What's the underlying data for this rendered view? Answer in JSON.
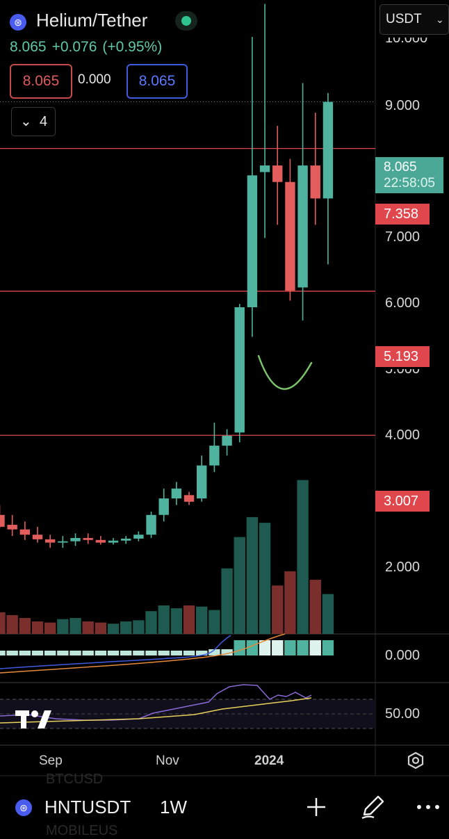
{
  "header": {
    "pair_title": "Helium/Tether",
    "last_price": "8.065",
    "change": "+0.076",
    "change_pct": "(+0.95%)",
    "bid": "8.065",
    "spread": "0.000",
    "ask": "8.065",
    "indicator_count": "4",
    "currency": "USDT"
  },
  "price_axis": {
    "ticks": [
      "10.000",
      "9.000",
      "7.000",
      "6.000",
      "5.000",
      "4.000",
      "2.000"
    ],
    "current_price_tag": "8.065",
    "countdown": "22:58:05",
    "level_tags": [
      "7.358",
      "5.193",
      "3.007"
    ],
    "macd_zero_label": "0.000",
    "rsi_mid_label": "50.00"
  },
  "time_axis": {
    "labels": [
      "Sep",
      "Nov",
      "2024"
    ]
  },
  "bottom": {
    "symbol": "HNTUSDT",
    "interval": "1W",
    "ghost_symbols": [
      "BTCUSD",
      "MOBILEUS"
    ]
  },
  "colors": {
    "up": "#4fb3a0",
    "down": "#e35d5d",
    "vol_up": "#1e5a4f",
    "vol_down": "#7a2f2c",
    "level_line": "#e0474c",
    "accent": "#4a5cf0",
    "annotation": "#7ac36a"
  },
  "icons": [
    "helium-coin-icon",
    "live-status-icon",
    "chevron-down-icon",
    "settings-icon",
    "plus-icon",
    "pen-icon",
    "more-icon",
    "tradingview-logo"
  ],
  "chart_data": {
    "type": "candlestick",
    "timeframe": "1W",
    "horizontal_levels": [
      7.358,
      5.193,
      3.007
    ],
    "last": 8.065,
    "candles": [
      {
        "o": 1.8,
        "h": 1.95,
        "l": 1.6,
        "c": 1.62,
        "v": 0.38
      },
      {
        "o": 1.65,
        "h": 1.8,
        "l": 1.48,
        "c": 1.58,
        "v": 0.33
      },
      {
        "o": 1.58,
        "h": 1.7,
        "l": 1.42,
        "c": 1.5,
        "v": 0.28
      },
      {
        "o": 1.5,
        "h": 1.62,
        "l": 1.38,
        "c": 1.43,
        "v": 0.22
      },
      {
        "o": 1.43,
        "h": 1.5,
        "l": 1.3,
        "c": 1.38,
        "v": 0.2
      },
      {
        "o": 1.38,
        "h": 1.48,
        "l": 1.3,
        "c": 1.4,
        "v": 0.26
      },
      {
        "o": 1.4,
        "h": 1.52,
        "l": 1.33,
        "c": 1.45,
        "v": 0.28
      },
      {
        "o": 1.45,
        "h": 1.52,
        "l": 1.36,
        "c": 1.42,
        "v": 0.22
      },
      {
        "o": 1.42,
        "h": 1.48,
        "l": 1.35,
        "c": 1.38,
        "v": 0.2
      },
      {
        "o": 1.38,
        "h": 1.45,
        "l": 1.35,
        "c": 1.41,
        "v": 0.18
      },
      {
        "o": 1.41,
        "h": 1.48,
        "l": 1.36,
        "c": 1.44,
        "v": 0.22
      },
      {
        "o": 1.44,
        "h": 1.55,
        "l": 1.4,
        "c": 1.5,
        "v": 0.24
      },
      {
        "o": 1.5,
        "h": 1.85,
        "l": 1.45,
        "c": 1.8,
        "v": 0.4
      },
      {
        "o": 1.8,
        "h": 2.2,
        "l": 1.7,
        "c": 2.05,
        "v": 0.5
      },
      {
        "o": 2.05,
        "h": 2.3,
        "l": 1.95,
        "c": 2.2,
        "v": 0.45
      },
      {
        "o": 2.1,
        "h": 2.15,
        "l": 1.95,
        "c": 2.0,
        "v": 0.5
      },
      {
        "o": 2.05,
        "h": 2.7,
        "l": 2.0,
        "c": 2.55,
        "v": 0.48
      },
      {
        "o": 2.55,
        "h": 3.2,
        "l": 2.45,
        "c": 2.85,
        "v": 0.42
      },
      {
        "o": 2.85,
        "h": 3.1,
        "l": 2.7,
        "c": 3.0,
        "v": 1.15
      },
      {
        "o": 3.05,
        "h": 5.0,
        "l": 2.9,
        "c": 4.95,
        "v": 1.7
      },
      {
        "o": 4.95,
        "h": 9.05,
        "l": 4.5,
        "c": 6.95,
        "v": 2.05
      },
      {
        "o": 7.0,
        "h": 9.55,
        "l": 6.0,
        "c": 7.1,
        "v": 1.95
      },
      {
        "o": 7.1,
        "h": 7.7,
        "l": 6.2,
        "c": 6.85,
        "v": 0.85
      },
      {
        "o": 6.85,
        "h": 7.2,
        "l": 5.05,
        "c": 5.2,
        "v": 1.1
      },
      {
        "o": 5.25,
        "h": 8.35,
        "l": 4.75,
        "c": 7.1,
        "v": 2.7
      },
      {
        "o": 7.1,
        "h": 7.9,
        "l": 6.2,
        "c": 6.6,
        "v": 0.95
      },
      {
        "o": 6.6,
        "h": 8.2,
        "l": 5.6,
        "c": 8.065,
        "v": 0.7
      }
    ]
  }
}
